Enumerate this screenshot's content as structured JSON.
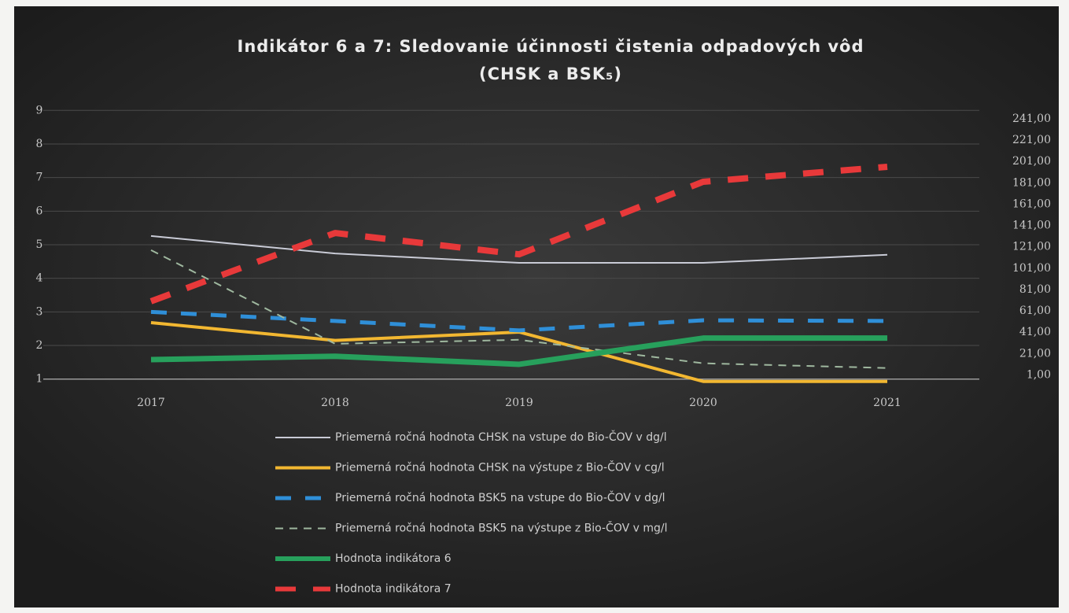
{
  "chart_data": {
    "type": "line",
    "title": [
      "Indikátor 6 a 7: Sledovanie účinnosti čistenia odpadových vôd",
      "(CHSK a BSK₅)"
    ],
    "categories": [
      "2017",
      "2018",
      "2019",
      "2020",
      "2021"
    ],
    "ylim": [
      0.9,
      9.1
    ],
    "yticks": [
      1,
      2,
      3,
      4,
      5,
      6,
      7,
      8,
      9
    ],
    "y2lim": [
      -6,
      252
    ],
    "y2ticks": [
      {
        "value": 1,
        "label": "1,00"
      },
      {
        "value": 21,
        "label": "21,00"
      },
      {
        "value": 41,
        "label": "41,00"
      },
      {
        "value": 61,
        "label": "61,00"
      },
      {
        "value": 81,
        "label": "81,00"
      },
      {
        "value": 101,
        "label": "101,00"
      },
      {
        "value": 121,
        "label": "121,00"
      },
      {
        "value": 141,
        "label": "141,00"
      },
      {
        "value": 161,
        "label": "161,00"
      },
      {
        "value": 181,
        "label": "181,00"
      },
      {
        "value": 201,
        "label": "201,00"
      },
      {
        "value": 221,
        "label": "221,00"
      },
      {
        "value": 241,
        "label": "241,00"
      }
    ],
    "grid": true,
    "legend": "bottom",
    "series": [
      {
        "name": "Priemerná ročná hodnota CHSK na vstupe do Bio-ČOV v dg/l",
        "color": "#c9cbd6",
        "width": 2,
        "dash": "none",
        "values": [
          5.26,
          4.74,
          4.46,
          4.46,
          4.7
        ]
      },
      {
        "name": "Priemerná ročná hodnota CHSK na výstupe z Bio-ČOV v cg/l",
        "color": "#f2b731",
        "width": 4,
        "dash": "none",
        "values": [
          2.68,
          2.15,
          2.4,
          0.93,
          0.93
        ]
      },
      {
        "name": "Priemerná ročná hodnota BSK5 na vstupe do Bio-ČOV v dg/l",
        "color": "#2f8fd8",
        "width": 5,
        "dash": "20 18",
        "values": [
          3.0,
          2.73,
          2.45,
          2.75,
          2.73
        ]
      },
      {
        "name": "Priemerná ročná hodnota BSK5 na výstupe z Bio-ČOV v mg/l",
        "color": "#9fb89f",
        "width": 2,
        "dash": "10 8",
        "values": [
          4.84,
          2.05,
          2.17,
          1.47,
          1.33
        ]
      },
      {
        "name": "Hodnota indikátora 6",
        "color": "#27a05c",
        "width": 7,
        "dash": "none",
        "values": [
          1.58,
          1.68,
          1.44,
          2.22,
          2.22
        ]
      },
      {
        "name": "Hodnota indikátora 7",
        "color": "#e8393a",
        "width": 8,
        "dash": "26 22",
        "axis": "y2",
        "values": [
          70,
          134,
          114,
          182,
          196
        ]
      }
    ]
  }
}
